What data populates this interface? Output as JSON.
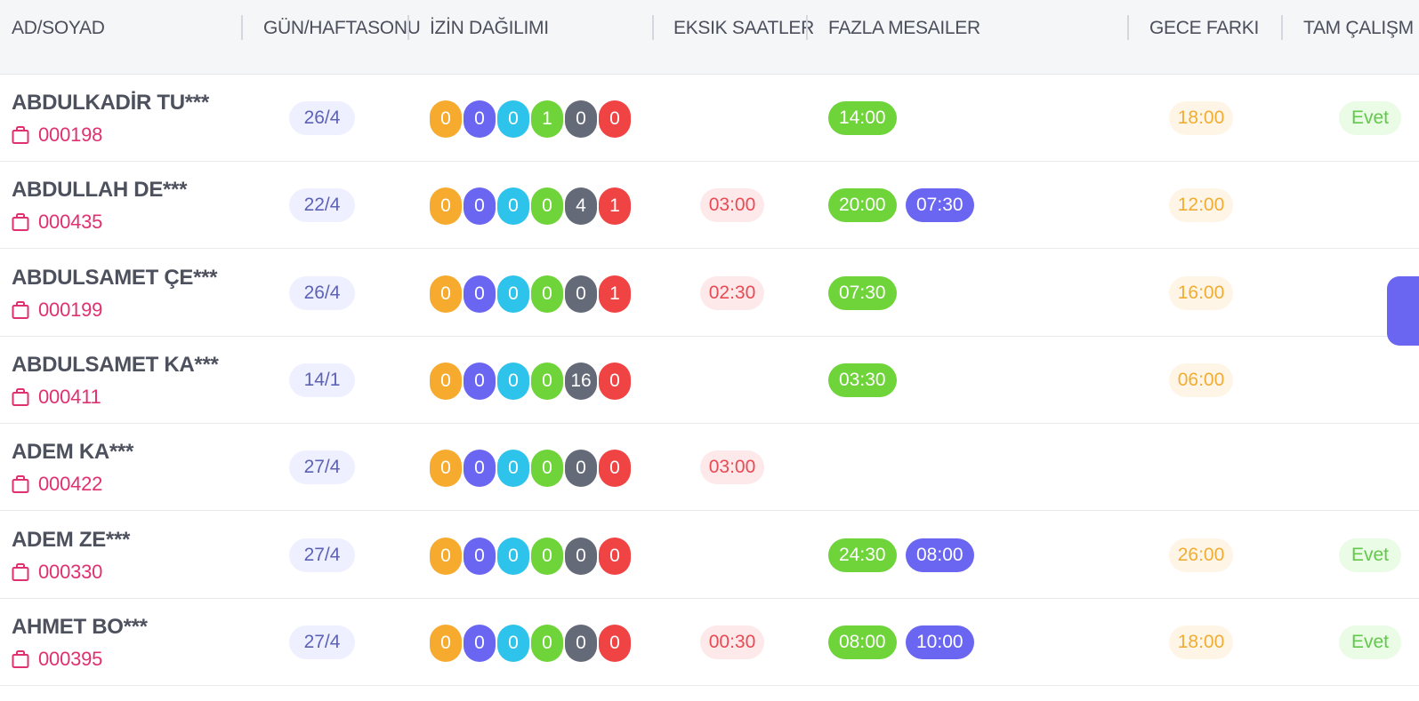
{
  "header": {
    "columns": [
      "AD/SOYAD",
      "GÜN/HAFTASONU",
      "İZİN DAĞILIMI",
      "EKSIK SAATLER",
      "FAZLA MESAILER",
      "GECE FARKI",
      "TAM ÇALIŞM"
    ]
  },
  "colors": {
    "leave_dots": [
      "#f7ab2e",
      "#6a66f2",
      "#2ec3ea",
      "#6fd33a",
      "#646a78",
      "#ef4344"
    ]
  },
  "rows": [
    {
      "name": "ABDULKADİR TU***",
      "code": "000198",
      "days": "26/4",
      "leave": [
        "0",
        "0",
        "0",
        "1",
        "0",
        "0"
      ],
      "missing": "",
      "overtime1": "14:00",
      "overtime2": "",
      "night": "18:00",
      "full": "Evet"
    },
    {
      "name": "ABDULLAH DE***",
      "code": "000435",
      "days": "22/4",
      "leave": [
        "0",
        "0",
        "0",
        "0",
        "4",
        "1"
      ],
      "missing": "03:00",
      "overtime1": "20:00",
      "overtime2": "07:30",
      "night": "12:00",
      "full": ""
    },
    {
      "name": "ABDULSAMET ÇE***",
      "code": "000199",
      "days": "26/4",
      "leave": [
        "0",
        "0",
        "0",
        "0",
        "0",
        "1"
      ],
      "missing": "02:30",
      "overtime1": "07:30",
      "overtime2": "",
      "night": "16:00",
      "full": ""
    },
    {
      "name": "ABDULSAMET KA***",
      "code": "000411",
      "days": "14/1",
      "leave": [
        "0",
        "0",
        "0",
        "0",
        "16",
        "0"
      ],
      "missing": "",
      "overtime1": "03:30",
      "overtime2": "",
      "night": "06:00",
      "full": ""
    },
    {
      "name": "ADEM KA***",
      "code": "000422",
      "days": "27/4",
      "leave": [
        "0",
        "0",
        "0",
        "0",
        "0",
        "0"
      ],
      "missing": "03:00",
      "overtime1": "",
      "overtime2": "",
      "night": "",
      "full": ""
    },
    {
      "name": "ADEM ZE***",
      "code": "000330",
      "days": "27/4",
      "leave": [
        "0",
        "0",
        "0",
        "0",
        "0",
        "0"
      ],
      "missing": "",
      "overtime1": "24:30",
      "overtime2": "08:00",
      "night": "26:00",
      "full": "Evet"
    },
    {
      "name": "AHMET BO***",
      "code": "000395",
      "days": "27/4",
      "leave": [
        "0",
        "0",
        "0",
        "0",
        "0",
        "0"
      ],
      "missing": "00:30",
      "overtime1": "08:00",
      "overtime2": "10:00",
      "night": "18:00",
      "full": "Evet"
    }
  ]
}
